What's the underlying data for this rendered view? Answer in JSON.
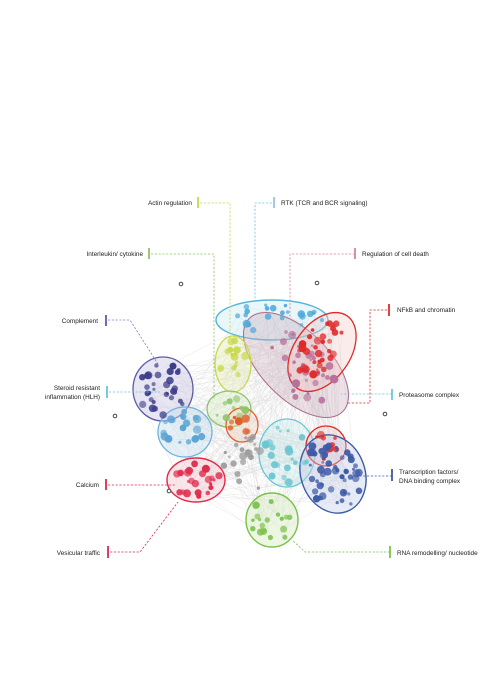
{
  "diagram": {
    "labels": [
      {
        "id": "actin",
        "text": "Actin regulation",
        "color": "#c9d94a"
      },
      {
        "id": "rtk",
        "text": "RTK (TCR and BCR signaling)",
        "color": "#8cc9e3"
      },
      {
        "id": "interleukin",
        "text": "Interleukin/ cytokine",
        "color": "#8cc46a"
      },
      {
        "id": "cell-death",
        "text": "Regulation of cell death",
        "color": "#d9829a"
      },
      {
        "id": "nfkb",
        "text": "NFkB and chromatin",
        "color": "#e02a2a"
      },
      {
        "id": "complement",
        "text": "Complement",
        "color": "#5e5ca6"
      },
      {
        "id": "steroid",
        "text_lines": [
          "Steroid resistant",
          "inflammation (HLH)"
        ],
        "color": "#6cc6e0"
      },
      {
        "id": "proteasome",
        "text": "Proteasome complex",
        "color": "#6cc6e0"
      },
      {
        "id": "calcium",
        "text": "Calcium",
        "color": "#e02a4a"
      },
      {
        "id": "tf",
        "text_lines": [
          "Transcription factors/",
          "DNA binding complex"
        ],
        "color": "#3c5aa6"
      },
      {
        "id": "vesicular",
        "text": "Vesicular traffic",
        "color": "#d92a5a"
      },
      {
        "id": "rna",
        "text": "RNA remodelling/ nucleotide",
        "color": "#7ac24a"
      }
    ]
  }
}
